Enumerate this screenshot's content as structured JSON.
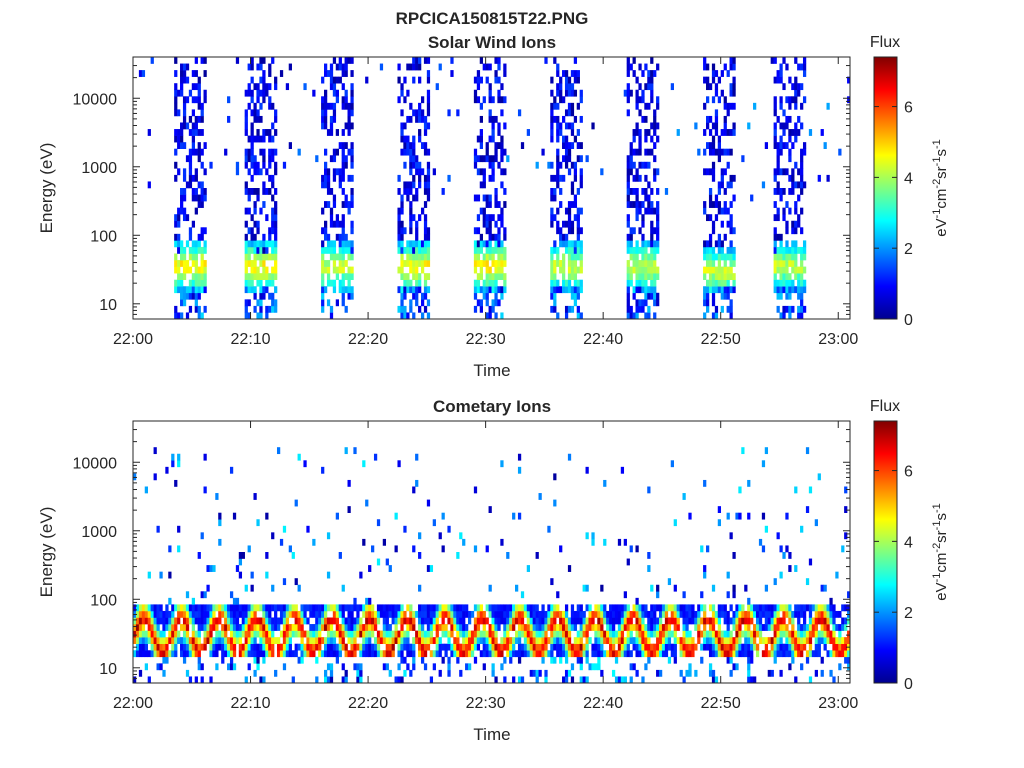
{
  "figure": {
    "filename": "RPCICA150815T22.PNG"
  },
  "chart_data": [
    {
      "type": "heatmap",
      "title": "Solar Wind Ions",
      "xlabel": "Time",
      "ylabel": "Energy (eV)",
      "y_scale": "log",
      "ylim": [
        6,
        40000
      ],
      "xlim": [
        "22:00",
        "23:00"
      ],
      "x_ticks": [
        "22:00",
        "22:10",
        "22:20",
        "22:30",
        "22:40",
        "22:50",
        "23:00"
      ],
      "y_ticks": [
        "10",
        "100",
        "1000",
        "10000"
      ],
      "colorbar": {
        "label": "Flux",
        "unit_parts": [
          "eV",
          "-1",
          "cm",
          "-2",
          "sr",
          "-1",
          "s",
          "-1"
        ],
        "ticks": [
          "0",
          "2",
          "4",
          "6"
        ],
        "range": [
          0,
          7.4
        ],
        "colormap": "jet"
      },
      "bursts": [
        {
          "start": "22:03.5",
          "end": "22:06.0",
          "peak_energy_eV": 35,
          "peak_flux": 4.5
        },
        {
          "start": "22:09.5",
          "end": "22:12.0",
          "peak_energy_eV": 35,
          "peak_flux": 4.5
        },
        {
          "start": "22:16.0",
          "end": "22:18.5",
          "peak_energy_eV": 35,
          "peak_flux": 4.0
        },
        {
          "start": "22:22.5",
          "end": "22:25.0",
          "peak_energy_eV": 35,
          "peak_flux": 4.5
        },
        {
          "start": "22:29.0",
          "end": "22:31.5",
          "peak_energy_eV": 35,
          "peak_flux": 4.5
        },
        {
          "start": "22:35.5",
          "end": "22:38.0",
          "peak_energy_eV": 35,
          "peak_flux": 4.0
        },
        {
          "start": "22:42.0",
          "end": "22:44.5",
          "peak_energy_eV": 35,
          "peak_flux": 4.0
        },
        {
          "start": "22:48.5",
          "end": "22:51.0",
          "peak_energy_eV": 30,
          "peak_flux": 4.0
        },
        {
          "start": "22:54.5",
          "end": "22:57.0",
          "peak_energy_eV": 35,
          "peak_flux": 4.0
        }
      ]
    },
    {
      "type": "heatmap",
      "title": "Cometary Ions",
      "xlabel": "Time",
      "ylabel": "Energy (eV)",
      "y_scale": "log",
      "ylim": [
        6,
        40000
      ],
      "xlim": [
        "22:00",
        "23:00"
      ],
      "x_ticks": [
        "22:00",
        "22:10",
        "22:20",
        "22:30",
        "22:40",
        "22:50",
        "23:00"
      ],
      "y_ticks": [
        "10",
        "100",
        "1000",
        "10000"
      ],
      "colorbar": {
        "label": "Flux",
        "unit_parts": [
          "eV",
          "-1",
          "cm",
          "-2",
          "sr",
          "-1",
          "s",
          "-1"
        ],
        "ticks": [
          "0",
          "2",
          "4",
          "6"
        ],
        "range": [
          0,
          7.4
        ],
        "colormap": "jet"
      },
      "band_energy_range_eV": [
        15,
        80
      ],
      "band_peak_flux": 7.0
    }
  ]
}
